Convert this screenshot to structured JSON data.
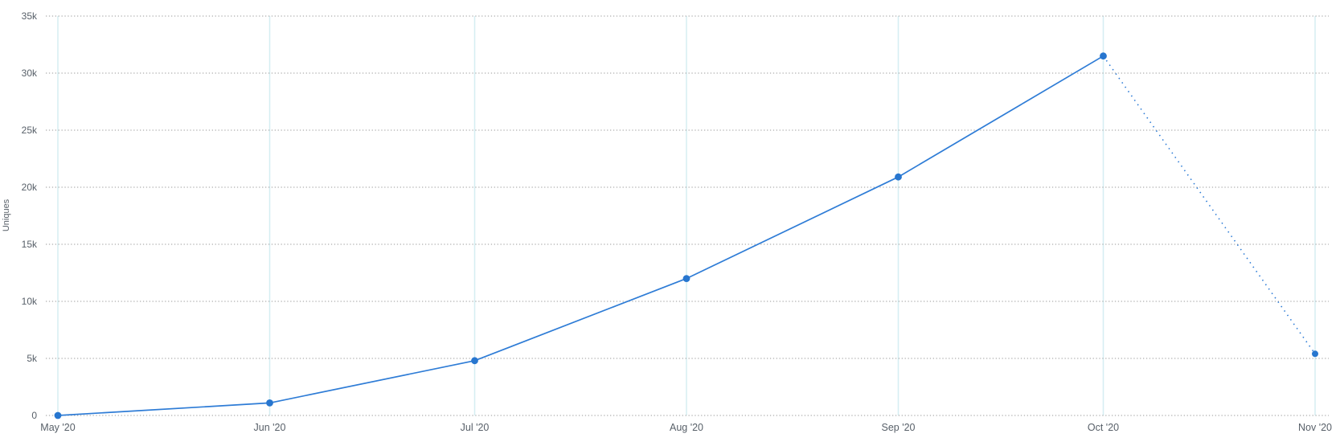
{
  "chart_data": {
    "type": "line",
    "title": "",
    "xlabel": "",
    "ylabel": "Uniques",
    "categories": [
      "May '20",
      "Jun '20",
      "Jul '20",
      "Aug '20",
      "Sep '20",
      "Oct '20",
      "Nov '20"
    ],
    "day_offsets": [
      0,
      31,
      61,
      92,
      123,
      153,
      184
    ],
    "series": [
      {
        "name": "Uniques",
        "values": [
          0,
          1100,
          4800,
          12000,
          20900,
          31500,
          5400
        ]
      }
    ],
    "ylim": [
      0,
      35000
    ],
    "y_tick_values": [
      0,
      5000,
      10000,
      15000,
      20000,
      25000,
      30000,
      35000
    ],
    "y_tick_labels": [
      "0",
      "5k",
      "10k",
      "15k",
      "20k",
      "25k",
      "30k",
      "35k"
    ],
    "legend_position": "none",
    "grid": {
      "horizontal": "dotted",
      "vertical": "solid"
    },
    "final_segment_dotted": true,
    "colors": {
      "line": "#2e7cd6",
      "point": "#2776cf",
      "vertical_grid": "#d5eef2",
      "horizontal_grid": "#9a9a9a",
      "tick_text": "#586069",
      "background": "#ffffff"
    }
  }
}
